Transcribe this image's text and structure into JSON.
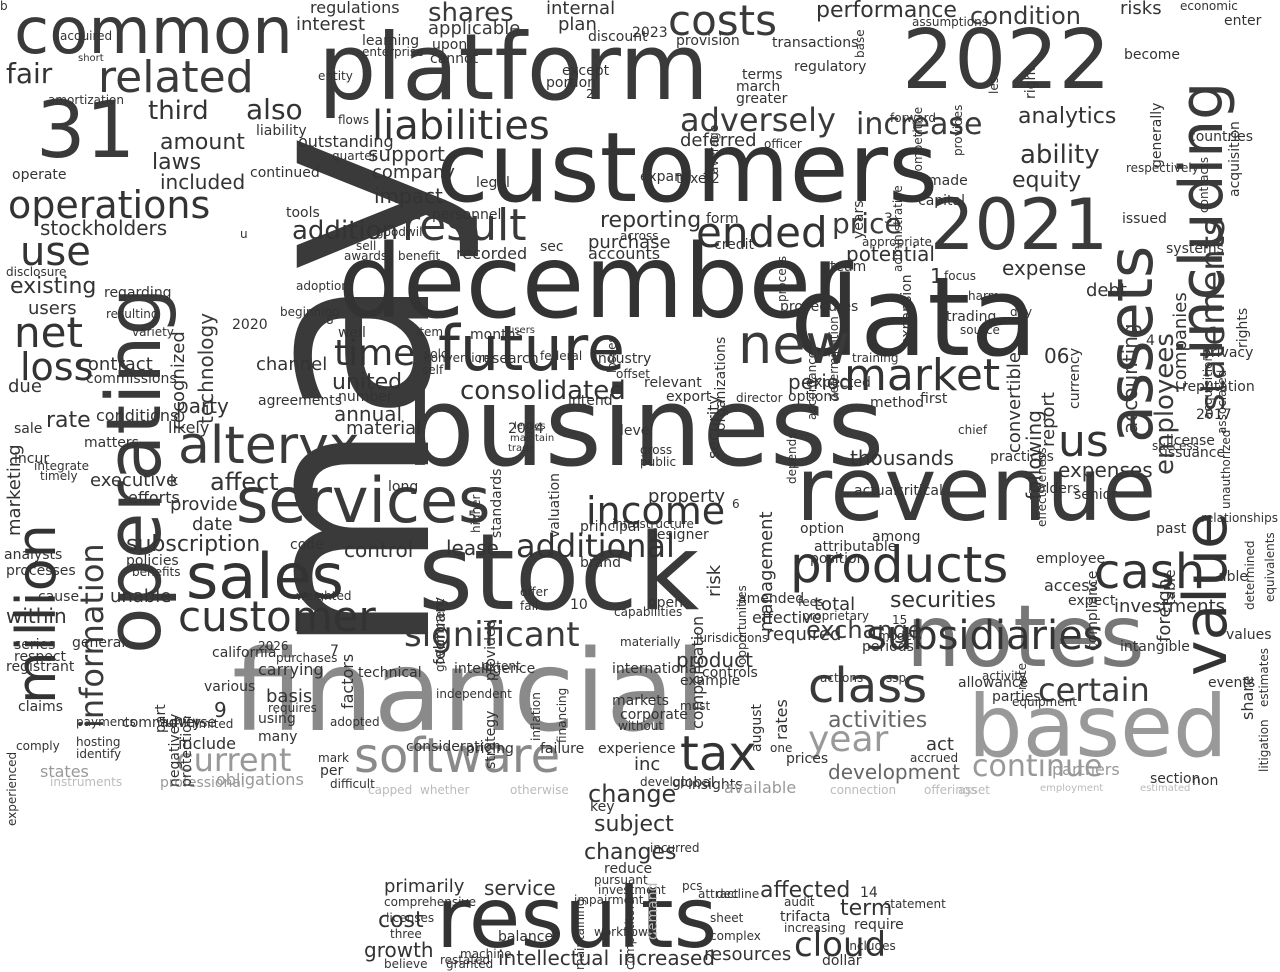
{
  "words": [
    {
      "text": "may"
    },
    {
      "text": "business"
    },
    {
      "text": "financial"
    },
    {
      "text": "december"
    },
    {
      "text": "customers"
    },
    {
      "text": "stock"
    },
    {
      "text": "data"
    },
    {
      "text": "platform"
    },
    {
      "text": "2022"
    },
    {
      "text": "revenue"
    },
    {
      "text": "operating"
    },
    {
      "text": "notes"
    },
    {
      "text": "results"
    },
    {
      "text": "million"
    },
    {
      "text": "common"
    },
    {
      "text": "31"
    },
    {
      "text": "based"
    },
    {
      "text": "including"
    },
    {
      "text": "assets"
    },
    {
      "text": "value"
    },
    {
      "text": "2021"
    },
    {
      "text": "future"
    },
    {
      "text": "services"
    },
    {
      "text": "sales"
    },
    {
      "text": "software"
    },
    {
      "text": "alteryx"
    },
    {
      "text": "products"
    },
    {
      "text": "customer"
    },
    {
      "text": "cash"
    },
    {
      "text": "tax"
    },
    {
      "text": "new"
    },
    {
      "text": "class"
    },
    {
      "text": "related"
    },
    {
      "text": "liabilities"
    },
    {
      "text": "costs"
    },
    {
      "text": "result"
    },
    {
      "text": "ended"
    },
    {
      "text": "market"
    },
    {
      "text": "current"
    },
    {
      "text": "operations"
    },
    {
      "text": "significant"
    },
    {
      "text": "statements"
    },
    {
      "text": "year"
    },
    {
      "text": "continue"
    },
    {
      "text": "certain"
    },
    {
      "text": "income"
    },
    {
      "text": "additional"
    },
    {
      "text": "cloud"
    },
    {
      "text": "net"
    },
    {
      "text": "use"
    },
    {
      "text": "us"
    },
    {
      "text": "loss"
    },
    {
      "text": "adversely"
    },
    {
      "text": "increase"
    },
    {
      "text": "consolidated"
    },
    {
      "text": "time"
    },
    {
      "text": "securities"
    },
    {
      "text": "affect"
    },
    {
      "text": "information"
    },
    {
      "text": "subscription"
    },
    {
      "text": "employees"
    },
    {
      "text": "ability"
    },
    {
      "text": "price"
    },
    {
      "text": "shares"
    },
    {
      "text": "development"
    },
    {
      "text": "activities"
    },
    {
      "text": "exchange"
    },
    {
      "text": "term"
    },
    {
      "text": "changes"
    },
    {
      "text": "subject"
    },
    {
      "text": "change"
    },
    {
      "text": "cost"
    },
    {
      "text": "growth"
    },
    {
      "text": "intellectual"
    },
    {
      "text": "increased"
    },
    {
      "text": "service"
    },
    {
      "text": "affected"
    },
    {
      "text": "primarily"
    },
    {
      "text": "resources"
    },
    {
      "text": "condition"
    },
    {
      "text": "performance"
    },
    {
      "text": "analytics"
    },
    {
      "text": "fair"
    },
    {
      "text": "also"
    },
    {
      "text": "third"
    },
    {
      "text": "amount"
    },
    {
      "text": "laws"
    },
    {
      "text": "included"
    },
    {
      "text": "stockholders"
    },
    {
      "text": "existing"
    },
    {
      "text": "users"
    },
    {
      "text": "contract"
    },
    {
      "text": "commissions"
    },
    {
      "text": "due"
    },
    {
      "text": "rate"
    },
    {
      "text": "conditions"
    },
    {
      "text": "marketing"
    },
    {
      "text": "executive"
    },
    {
      "text": "efforts"
    },
    {
      "text": "addition"
    },
    {
      "text": "company"
    },
    {
      "text": "impact"
    },
    {
      "text": "support"
    },
    {
      "text": "interest"
    },
    {
      "text": "regulations"
    },
    {
      "text": "internal"
    },
    {
      "text": "plan"
    },
    {
      "text": "applicable"
    },
    {
      "text": "reporting"
    },
    {
      "text": "purchase"
    },
    {
      "text": "recorded"
    },
    {
      "text": "accounts"
    },
    {
      "text": "deferred"
    },
    {
      "text": "potential"
    },
    {
      "text": "expense"
    },
    {
      "text": "equity"
    },
    {
      "text": "debt"
    },
    {
      "text": "accounting"
    },
    {
      "text": "companies"
    },
    {
      "text": "expenses"
    },
    {
      "text": "following"
    },
    {
      "text": "report"
    },
    {
      "text": "convertible"
    },
    {
      "text": "thousands"
    },
    {
      "text": "period"
    },
    {
      "text": "united"
    },
    {
      "text": "annual"
    },
    {
      "text": "material"
    },
    {
      "text": "party"
    },
    {
      "text": "technology"
    },
    {
      "text": "recognized"
    },
    {
      "text": "channel"
    },
    {
      "text": "agreements"
    },
    {
      "text": "likely"
    },
    {
      "text": "provide"
    },
    {
      "text": "date"
    },
    {
      "text": "control"
    },
    {
      "text": "lease"
    },
    {
      "text": "unable"
    },
    {
      "text": "within"
    },
    {
      "text": "cause"
    },
    {
      "text": "analysts"
    },
    {
      "text": "processes"
    },
    {
      "text": "series"
    },
    {
      "text": "respect"
    },
    {
      "text": "registrant"
    },
    {
      "text": "claims"
    },
    {
      "text": "payments"
    },
    {
      "text": "include"
    },
    {
      "text": "adverse"
    },
    {
      "text": "using"
    },
    {
      "text": "many"
    },
    {
      "text": "basis"
    },
    {
      "text": "carrying"
    },
    {
      "text": "factors"
    },
    {
      "text": "technical"
    },
    {
      "text": "states"
    },
    {
      "text": "obligations"
    },
    {
      "text": "per"
    },
    {
      "text": "act"
    },
    {
      "text": "inc"
    },
    {
      "text": "insights"
    },
    {
      "text": "available"
    },
    {
      "text": "partners"
    },
    {
      "text": "share"
    },
    {
      "text": "compliance"
    },
    {
      "text": "allowance"
    },
    {
      "text": "parties"
    },
    {
      "text": "events"
    },
    {
      "text": "management"
    },
    {
      "text": "total"
    },
    {
      "text": "required"
    },
    {
      "text": "effective"
    },
    {
      "text": "investments"
    },
    {
      "text": "property"
    },
    {
      "text": "risk"
    },
    {
      "text": "compensation"
    },
    {
      "text": "security"
    },
    {
      "text": "product"
    },
    {
      "text": "controls"
    },
    {
      "text": "february"
    },
    {
      "text": "consideration"
    },
    {
      "text": "pricing"
    },
    {
      "text": "failure"
    },
    {
      "text": "experience"
    },
    {
      "text": "corporate"
    },
    {
      "text": "markets"
    },
    {
      "text": "senior"
    },
    {
      "text": "holders"
    },
    {
      "text": "foreign"
    },
    {
      "text": "intangible"
    },
    {
      "text": "access"
    },
    {
      "text": "employee"
    },
    {
      "text": "expect"
    },
    {
      "text": "rates"
    },
    {
      "text": "options"
    },
    {
      "text": "expected"
    },
    {
      "text": "2020"
    },
    {
      "text": "2023"
    },
    {
      "text": "2024"
    },
    {
      "text": "2017"
    },
    {
      "text": "risks"
    },
    {
      "text": "years"
    },
    {
      "text": "issued"
    },
    {
      "text": "systems"
    },
    {
      "text": "first"
    },
    {
      "text": "method"
    },
    {
      "text": "unauthorized"
    },
    {
      "text": "rights"
    },
    {
      "text": "privacy"
    },
    {
      "text": "license"
    },
    {
      "text": "issuance"
    },
    {
      "text": "generally"
    },
    {
      "text": "acquisition"
    },
    {
      "text": "contracts"
    },
    {
      "text": "respectively"
    },
    {
      "text": "countries"
    },
    {
      "text": "made"
    },
    {
      "text": "capital"
    },
    {
      "text": "forward"
    },
    {
      "text": "infrastructure"
    },
    {
      "text": "operate"
    },
    {
      "text": "acquired"
    },
    {
      "text": "short"
    },
    {
      "text": "amortization"
    },
    {
      "text": "success"
    },
    {
      "text": "fail"
    },
    {
      "text": "offer"
    },
    {
      "text": "open"
    },
    {
      "text": "gross"
    },
    {
      "text": "public"
    },
    {
      "text": "level"
    },
    {
      "text": "number"
    },
    {
      "text": "well"
    },
    {
      "text": "item"
    },
    {
      "text": "research"
    },
    {
      "text": "federal"
    },
    {
      "text": "industry"
    },
    {
      "text": "conversion"
    },
    {
      "text": "months"
    },
    {
      "text": "users"
    },
    {
      "text": "extent"
    },
    {
      "text": "international"
    },
    {
      "text": "materially"
    },
    {
      "text": "example"
    },
    {
      "text": "long"
    },
    {
      "text": "principal"
    },
    {
      "text": "designer"
    },
    {
      "text": "brand"
    },
    {
      "text": "valuation"
    },
    {
      "text": "standards"
    },
    {
      "text": "incurred"
    },
    {
      "text": "reduce"
    },
    {
      "text": "pursuant"
    },
    {
      "text": "investment"
    },
    {
      "text": "impairment"
    },
    {
      "text": "decline"
    },
    {
      "text": "audit"
    },
    {
      "text": "trifacta"
    },
    {
      "text": "require"
    },
    {
      "text": "balance"
    },
    {
      "text": "dollar"
    },
    {
      "text": "comprehensive"
    },
    {
      "text": "licenses"
    },
    {
      "text": "believe"
    },
    {
      "text": "restated"
    },
    {
      "text": "global"
    },
    {
      "text": "key"
    },
    {
      "text": "develop"
    },
    {
      "text": "demand"
    },
    {
      "text": "competitors"
    },
    {
      "text": "capped"
    },
    {
      "text": "whether"
    },
    {
      "text": "otherwise"
    },
    {
      "text": "connection"
    },
    {
      "text": "offerings"
    },
    {
      "text": "asset"
    },
    {
      "text": "estimated"
    },
    {
      "text": "instruments"
    },
    {
      "text": "professional"
    },
    {
      "text": "section"
    },
    {
      "text": "non"
    },
    {
      "text": "maintain"
    },
    {
      "text": "leases"
    },
    {
      "text": "trade"
    },
    {
      "text": "strategy"
    },
    {
      "text": "provided"
    },
    {
      "text": "position"
    },
    {
      "text": "attributable"
    },
    {
      "text": "option"
    },
    {
      "text": "among"
    },
    {
      "text": "actual"
    },
    {
      "text": "critical"
    },
    {
      "text": "practices"
    },
    {
      "text": "chief"
    },
    {
      "text": "integrate"
    },
    {
      "text": "timely"
    },
    {
      "text": "matters"
    },
    {
      "text": "sale"
    },
    {
      "text": "incur"
    },
    {
      "text": "policies"
    },
    {
      "text": "benefits"
    },
    {
      "text": "weighted"
    },
    {
      "text": "2026"
    },
    {
      "text": "code"
    },
    {
      "text": "general"
    },
    {
      "text": "california"
    },
    {
      "text": "various"
    },
    {
      "text": "part"
    },
    {
      "text": "negatively"
    },
    {
      "text": "protection"
    },
    {
      "text": "community"
    },
    {
      "text": "hosting"
    },
    {
      "text": "identify"
    },
    {
      "text": "comply"
    },
    {
      "text": "experienced"
    },
    {
      "text": "acquisitions"
    },
    {
      "text": "equivalents"
    },
    {
      "text": "determined"
    },
    {
      "text": "estimates"
    },
    {
      "text": "litigation"
    },
    {
      "text": "relationships"
    },
    {
      "text": "values"
    },
    {
      "text": "able"
    },
    {
      "text": "past"
    },
    {
      "text": "table"
    },
    {
      "text": "reputation"
    },
    {
      "text": "enter"
    },
    {
      "text": "economic"
    },
    {
      "text": "become"
    },
    {
      "text": "right"
    },
    {
      "text": "less"
    },
    {
      "text": "provides"
    },
    {
      "text": "competitive"
    },
    {
      "text": "outstanding"
    },
    {
      "text": "quarter"
    },
    {
      "text": "flows"
    },
    {
      "text": "entity"
    },
    {
      "text": "enterprise"
    },
    {
      "text": "learning"
    },
    {
      "text": "cannot"
    },
    {
      "text": "upon"
    },
    {
      "text": "except"
    },
    {
      "text": "portion"
    },
    {
      "text": "terms"
    },
    {
      "text": "march"
    },
    {
      "text": "greater"
    },
    {
      "text": "average"
    },
    {
      "text": "provision"
    },
    {
      "text": "transactions"
    },
    {
      "text": "regulatory"
    },
    {
      "text": "base"
    },
    {
      "text": "assumptions"
    },
    {
      "text": "discount"
    },
    {
      "text": "expand"
    },
    {
      "text": "legal"
    },
    {
      "text": "taxes"
    },
    {
      "text": "form"
    },
    {
      "text": "credit"
    },
    {
      "text": "officer"
    },
    {
      "text": "liability"
    },
    {
      "text": "continued"
    },
    {
      "text": "tools"
    },
    {
      "text": "personnel"
    },
    {
      "text": "goodwill"
    },
    {
      "text": "sell"
    },
    {
      "text": "awards"
    },
    {
      "text": "benefit"
    },
    {
      "text": "beginning"
    },
    {
      "text": "adoption"
    },
    {
      "text": "sec"
    },
    {
      "text": "across"
    },
    {
      "text": "appropriate"
    },
    {
      "text": "team"
    },
    {
      "text": "trading"
    },
    {
      "text": "source"
    },
    {
      "text": "expansion"
    },
    {
      "text": "administrative"
    },
    {
      "text": "process"
    },
    {
      "text": "procedures"
    },
    {
      "text": "determination"
    },
    {
      "text": "training"
    },
    {
      "text": "accordance"
    },
    {
      "text": "organizations"
    },
    {
      "text": "director"
    },
    {
      "text": "relevant"
    },
    {
      "text": "export"
    },
    {
      "text": "losses"
    },
    {
      "text": "intend"
    },
    {
      "text": "offset"
    },
    {
      "text": "sold"
    },
    {
      "text": "self"
    },
    {
      "text": "focus"
    },
    {
      "text": "harm"
    },
    {
      "text": "day"
    },
    {
      "text": "models"
    },
    {
      "text": "ssp"
    },
    {
      "text": "accrued"
    },
    {
      "text": "periods"
    },
    {
      "text": "actions"
    },
    {
      "text": "august"
    },
    {
      "text": "jurisdictions"
    },
    {
      "text": "amended"
    },
    {
      "text": "higher"
    },
    {
      "text": "capabilities"
    },
    {
      "text": "activity"
    },
    {
      "text": "note"
    },
    {
      "text": "equipment"
    },
    {
      "text": "proprietary"
    },
    {
      "text": "fees"
    },
    {
      "text": "prices"
    },
    {
      "text": "one"
    },
    {
      "text": "depends"
    },
    {
      "text": "opportunities"
    },
    {
      "text": "currency"
    },
    {
      "text": "associated"
    },
    {
      "text": "effectiveness"
    },
    {
      "text": "disclosure"
    },
    {
      "text": "regarding"
    },
    {
      "text": "resulting"
    },
    {
      "text": "variety"
    },
    {
      "text": "government"
    },
    {
      "text": "independent"
    },
    {
      "text": "adopted"
    },
    {
      "text": "requires"
    },
    {
      "text": "purchases"
    },
    {
      "text": "limited"
    },
    {
      "text": "mark"
    },
    {
      "text": "difficult"
    },
    {
      "text": "must"
    },
    {
      "text": "without"
    },
    {
      "text": "inflation"
    },
    {
      "text": "financing"
    },
    {
      "text": "intelligence"
    },
    {
      "text": "three"
    },
    {
      "text": "workflows"
    },
    {
      "text": "machine"
    },
    {
      "text": "granted"
    },
    {
      "text": "maintaining"
    },
    {
      "text": "includes"
    },
    {
      "text": "complex"
    },
    {
      "text": "increasing"
    },
    {
      "text": "sheet"
    },
    {
      "text": "attract"
    },
    {
      "text": "pcs"
    },
    {
      "text": "statement"
    },
    {
      "text": "employment"
    },
    {
      "text": "subsidiaries"
    },
    {
      "text": "1"
    },
    {
      "text": "2"
    },
    {
      "text": "3"
    },
    {
      "text": "4"
    },
    {
      "text": "5"
    },
    {
      "text": "6"
    },
    {
      "text": "7"
    },
    {
      "text": "8"
    },
    {
      "text": "9"
    },
    {
      "text": "10"
    },
    {
      "text": "12"
    },
    {
      "text": "14"
    },
    {
      "text": "15"
    },
    {
      "text": "06"
    },
    {
      "text": "u"
    },
    {
      "text": "k"
    },
    {
      "text": "b"
    }
  ]
}
